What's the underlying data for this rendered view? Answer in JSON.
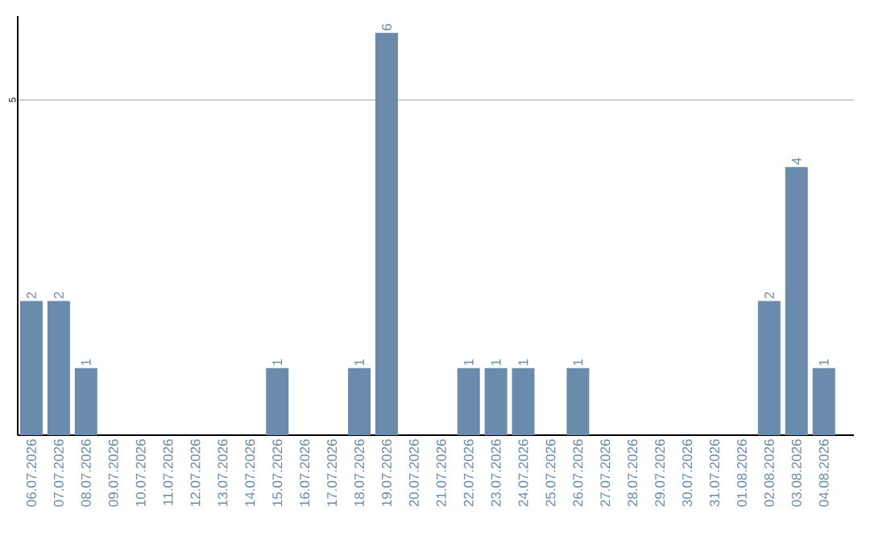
{
  "chart_data": {
    "type": "bar",
    "categories": [
      "06.07.2026",
      "07.07.2026",
      "08.07.2026",
      "09.07.2026",
      "10.07.2026",
      "11.07.2026",
      "12.07.2026",
      "13.07.2026",
      "14.07.2026",
      "15.07.2026",
      "16.07.2026",
      "17.07.2026",
      "18.07.2026",
      "19.07.2026",
      "20.07.2026",
      "21.07.2026",
      "22.07.2026",
      "23.07.2026",
      "24.07.2026",
      "25.07.2026",
      "26.07.2026",
      "27.07.2026",
      "28.07.2026",
      "29.07.2026",
      "30.07.2026",
      "31.07.2026",
      "01.08.2026",
      "02.08.2026",
      "03.08.2026",
      "04.08.2026"
    ],
    "values": [
      2,
      2,
      1,
      0,
      0,
      0,
      0,
      0,
      0,
      1,
      0,
      0,
      1,
      6,
      0,
      0,
      1,
      1,
      1,
      0,
      1,
      0,
      0,
      0,
      0,
      0,
      0,
      2,
      4,
      1
    ],
    "value_labels": [
      "2",
      "2",
      "1",
      null,
      null,
      null,
      null,
      null,
      null,
      "1",
      null,
      null,
      "1",
      "6",
      null,
      null,
      "1",
      "1",
      "1",
      null,
      "1",
      null,
      null,
      null,
      null,
      null,
      null,
      "2",
      "4",
      "1"
    ],
    "color": "#6a8bab",
    "ylim": [
      0,
      6.25
    ],
    "yticks": [
      5
    ],
    "grid": "y"
  }
}
